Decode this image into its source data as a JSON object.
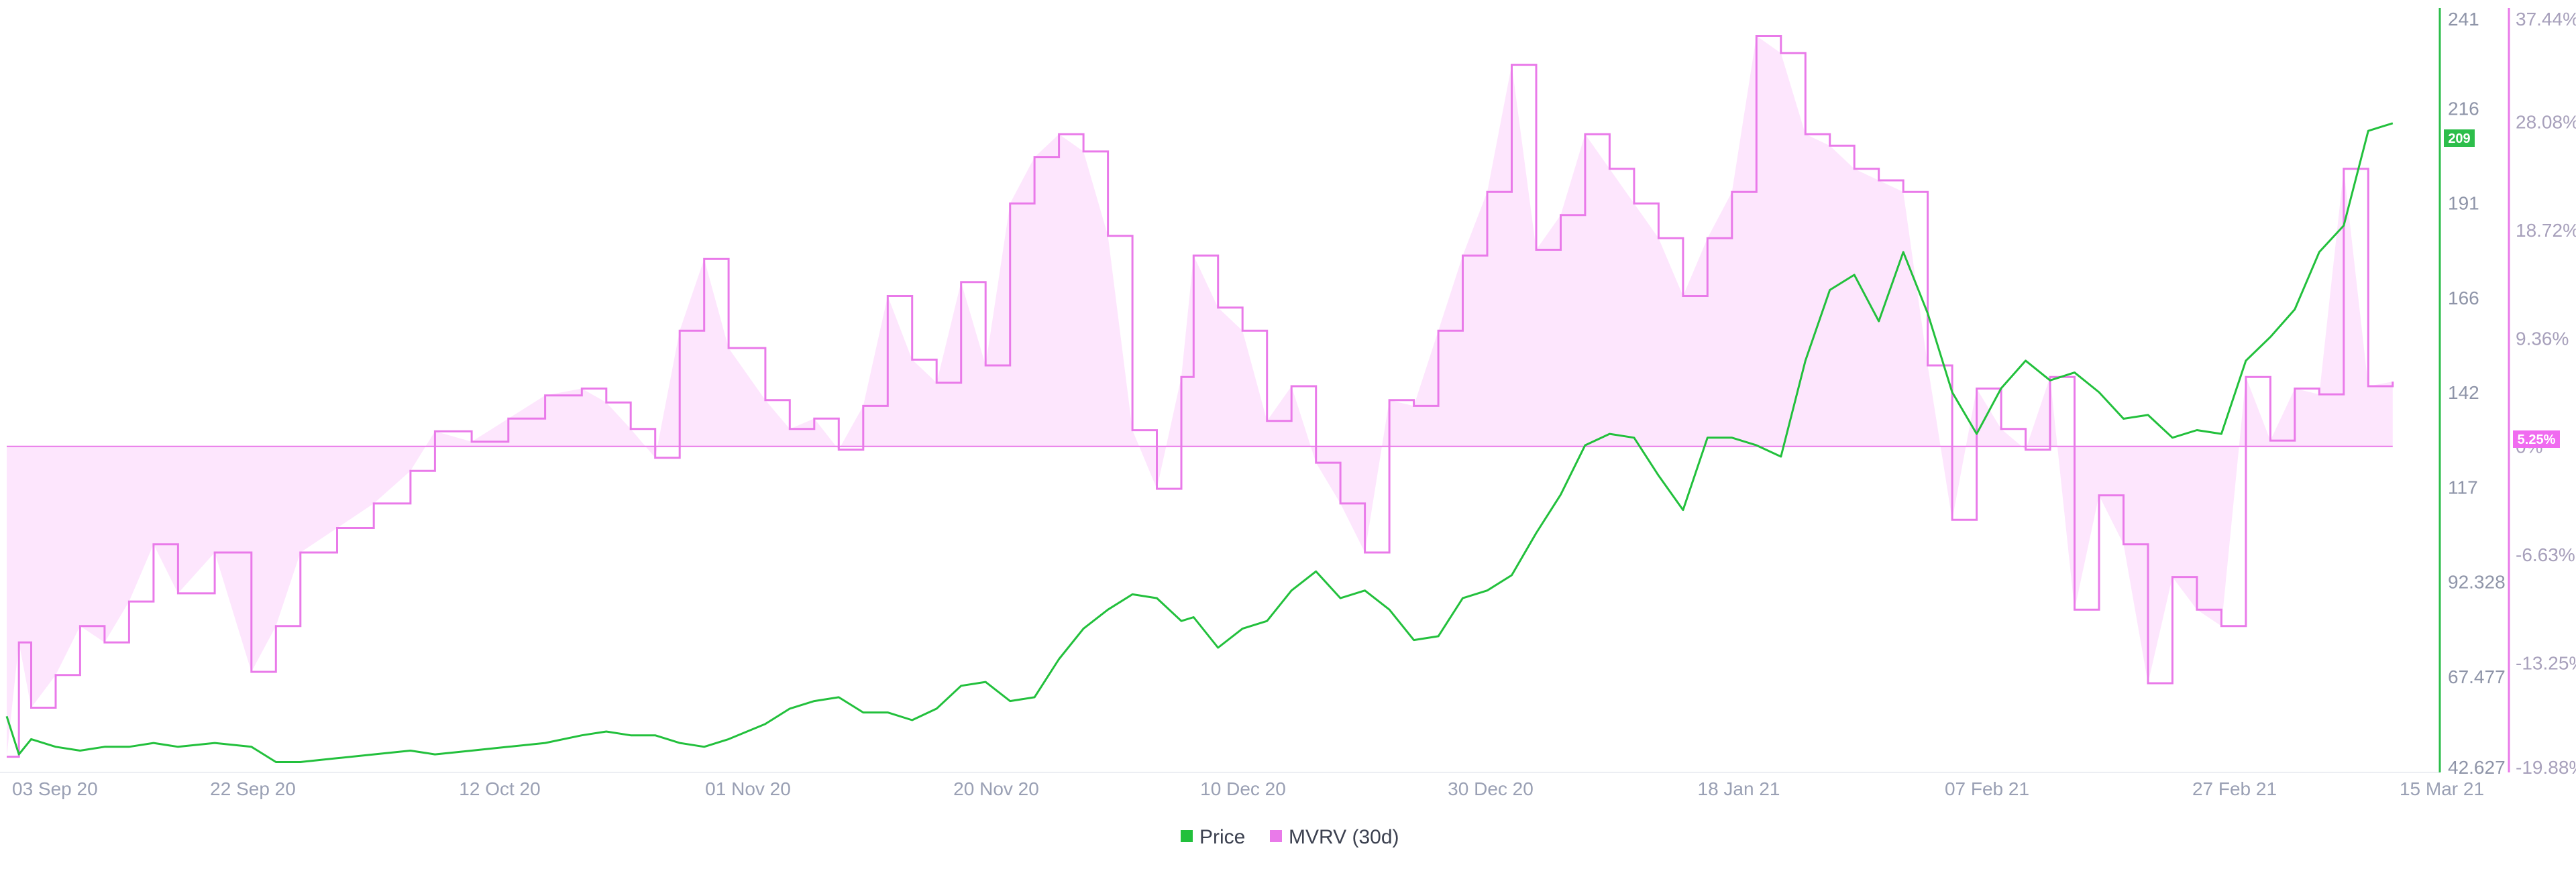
{
  "chart_data": {
    "type": "line",
    "title": "",
    "xlabel": "",
    "x_ticks": [
      "03 Sep 20",
      "22 Sep 20",
      "12 Oct 20",
      "01 Nov 20",
      "20 Nov 20",
      "10 Dec 20",
      "30 Dec 20",
      "18 Jan 21",
      "07 Feb 21",
      "27 Feb 21",
      "15 Mar 21"
    ],
    "x_range": [
      "2020-08-31",
      "2021-03-15"
    ],
    "y_axis_price": {
      "ticks": [
        "241",
        "216",
        "191",
        "166",
        "142",
        "117",
        "92.328",
        "67.477",
        "42.627"
      ],
      "range": [
        42.627,
        241
      ],
      "color": "#2dbe4b"
    },
    "y_axis_mvrv": {
      "ticks": [
        "37.44%",
        "28.08%",
        "18.72%",
        "9.36%",
        "0%",
        "-6.63%",
        "-13.25%",
        "-19.88%"
      ],
      "range": [
        -19.88,
        37.44
      ],
      "color": "#e97ae9"
    },
    "current_price_label": "209",
    "current_mvrv_label": "5.25%",
    "grid": false,
    "legend_position": "bottom-center",
    "series": [
      {
        "name": "Price",
        "axis": "price",
        "color": "#22c03c",
        "points": [
          [
            "2020-08-31",
            57
          ],
          [
            "2020-09-01",
            47
          ],
          [
            "2020-09-02",
            51
          ],
          [
            "2020-09-04",
            49
          ],
          [
            "2020-09-06",
            48
          ],
          [
            "2020-09-08",
            49
          ],
          [
            "2020-09-10",
            49
          ],
          [
            "2020-09-12",
            50
          ],
          [
            "2020-09-14",
            49
          ],
          [
            "2020-09-17",
            50
          ],
          [
            "2020-09-20",
            49
          ],
          [
            "2020-09-22",
            45
          ],
          [
            "2020-09-24",
            45
          ],
          [
            "2020-09-27",
            46
          ],
          [
            "2020-09-30",
            47
          ],
          [
            "2020-10-03",
            48
          ],
          [
            "2020-10-05",
            47
          ],
          [
            "2020-10-08",
            48
          ],
          [
            "2020-10-11",
            49
          ],
          [
            "2020-10-14",
            50
          ],
          [
            "2020-10-17",
            52
          ],
          [
            "2020-10-19",
            53
          ],
          [
            "2020-10-21",
            52
          ],
          [
            "2020-10-23",
            52
          ],
          [
            "2020-10-25",
            50
          ],
          [
            "2020-10-27",
            49
          ],
          [
            "2020-10-29",
            51
          ],
          [
            "2020-11-01",
            55
          ],
          [
            "2020-11-03",
            59
          ],
          [
            "2020-11-05",
            61
          ],
          [
            "2020-11-07",
            62
          ],
          [
            "2020-11-09",
            58
          ],
          [
            "2020-11-11",
            58
          ],
          [
            "2020-11-13",
            56
          ],
          [
            "2020-11-15",
            59
          ],
          [
            "2020-11-17",
            65
          ],
          [
            "2020-11-19",
            66
          ],
          [
            "2020-11-21",
            61
          ],
          [
            "2020-11-23",
            62
          ],
          [
            "2020-11-25",
            72
          ],
          [
            "2020-11-27",
            80
          ],
          [
            "2020-11-29",
            85
          ],
          [
            "2020-12-01",
            89
          ],
          [
            "2020-12-03",
            88
          ],
          [
            "2020-12-05",
            82
          ],
          [
            "2020-12-06",
            83
          ],
          [
            "2020-12-08",
            75
          ],
          [
            "2020-12-10",
            80
          ],
          [
            "2020-12-12",
            82
          ],
          [
            "2020-12-14",
            90
          ],
          [
            "2020-12-16",
            95
          ],
          [
            "2020-12-18",
            88
          ],
          [
            "2020-12-20",
            90
          ],
          [
            "2020-12-22",
            85
          ],
          [
            "2020-12-24",
            77
          ],
          [
            "2020-12-26",
            78
          ],
          [
            "2020-12-28",
            88
          ],
          [
            "2020-12-30",
            90
          ],
          [
            "2021-01-01",
            94
          ],
          [
            "2021-01-03",
            105
          ],
          [
            "2021-01-05",
            115
          ],
          [
            "2021-01-07",
            128
          ],
          [
            "2021-01-09",
            131
          ],
          [
            "2021-01-11",
            130
          ],
          [
            "2021-01-13",
            120
          ],
          [
            "2021-01-15",
            111
          ],
          [
            "2021-01-17",
            130
          ],
          [
            "2021-01-19",
            130
          ],
          [
            "2021-01-21",
            128
          ],
          [
            "2021-01-23",
            125
          ],
          [
            "2021-01-25",
            150
          ],
          [
            "2021-01-27",
            168
          ],
          [
            "2021-01-29",
            172
          ],
          [
            "2021-01-31",
            160
          ],
          [
            "2021-02-02",
            178
          ],
          [
            "2021-02-04",
            162
          ],
          [
            "2021-02-06",
            142
          ],
          [
            "2021-02-08",
            131
          ],
          [
            "2021-02-10",
            143
          ],
          [
            "2021-02-12",
            150
          ],
          [
            "2021-02-14",
            145
          ],
          [
            "2021-02-16",
            147
          ],
          [
            "2021-02-18",
            142
          ],
          [
            "2021-02-20",
            135
          ],
          [
            "2021-02-22",
            136
          ],
          [
            "2021-02-24",
            130
          ],
          [
            "2021-02-26",
            132
          ],
          [
            "2021-02-28",
            131
          ],
          [
            "2021-03-02",
            150
          ],
          [
            "2021-03-04",
            156
          ],
          [
            "2021-03-06",
            163
          ],
          [
            "2021-03-08",
            178
          ],
          [
            "2021-03-10",
            185
          ],
          [
            "2021-03-12",
            210
          ],
          [
            "2021-03-14",
            212
          ]
        ]
      },
      {
        "name": "MVRV (30d)",
        "axis": "mvrv",
        "color": "#e97ae9",
        "fill": "#fde6fd",
        "points": [
          [
            "2020-08-31",
            -19.0
          ],
          [
            "2020-09-01",
            -12.0
          ],
          [
            "2020-09-02",
            -16.0
          ],
          [
            "2020-09-04",
            -14.0
          ],
          [
            "2020-09-06",
            -11.0
          ],
          [
            "2020-09-08",
            -12.0
          ],
          [
            "2020-09-10",
            -9.5
          ],
          [
            "2020-09-12",
            -6.0
          ],
          [
            "2020-09-14",
            -9.0
          ],
          [
            "2020-09-17",
            -6.5
          ],
          [
            "2020-09-20",
            -13.8
          ],
          [
            "2020-09-22",
            -11.0
          ],
          [
            "2020-09-24",
            -6.5
          ],
          [
            "2020-09-27",
            -5.0
          ],
          [
            "2020-09-30",
            -3.5
          ],
          [
            "2020-10-03",
            -1.5
          ],
          [
            "2020-10-05",
            1.3
          ],
          [
            "2020-10-08",
            0.4
          ],
          [
            "2020-10-11",
            2.4
          ],
          [
            "2020-10-14",
            4.4
          ],
          [
            "2020-10-17",
            5.0
          ],
          [
            "2020-10-19",
            3.8
          ],
          [
            "2020-10-21",
            1.5
          ],
          [
            "2020-10-23",
            -0.7
          ],
          [
            "2020-10-25",
            10.0
          ],
          [
            "2020-10-27",
            16.2
          ],
          [
            "2020-10-29",
            8.5
          ],
          [
            "2020-11-01",
            4.0
          ],
          [
            "2020-11-03",
            1.5
          ],
          [
            "2020-11-05",
            2.4
          ],
          [
            "2020-11-07",
            -0.2
          ],
          [
            "2020-11-09",
            3.5
          ],
          [
            "2020-11-11",
            13.0
          ],
          [
            "2020-11-13",
            7.5
          ],
          [
            "2020-11-15",
            5.5
          ],
          [
            "2020-11-17",
            14.2
          ],
          [
            "2020-11-19",
            7.0
          ],
          [
            "2020-11-21",
            21.0
          ],
          [
            "2020-11-23",
            25.0
          ],
          [
            "2020-11-25",
            27.0
          ],
          [
            "2020-11-27",
            25.5
          ],
          [
            "2020-11-29",
            18.2
          ],
          [
            "2020-12-01",
            1.4
          ],
          [
            "2020-12-03",
            -2.6
          ],
          [
            "2020-12-05",
            6.0
          ],
          [
            "2020-12-06",
            16.5
          ],
          [
            "2020-12-08",
            12.0
          ],
          [
            "2020-12-10",
            10.0
          ],
          [
            "2020-12-12",
            2.2
          ],
          [
            "2020-12-14",
            5.2
          ],
          [
            "2020-12-16",
            -1.0
          ],
          [
            "2020-12-18",
            -3.5
          ],
          [
            "2020-12-20",
            -6.5
          ],
          [
            "2020-12-22",
            4.0
          ],
          [
            "2020-12-24",
            3.5
          ],
          [
            "2020-12-26",
            10.0
          ],
          [
            "2020-12-28",
            16.5
          ],
          [
            "2020-12-30",
            22.0
          ],
          [
            "2021-01-01",
            33.0
          ],
          [
            "2021-01-03",
            17.0
          ],
          [
            "2021-01-05",
            20.0
          ],
          [
            "2021-01-07",
            27.0
          ],
          [
            "2021-01-09",
            24.0
          ],
          [
            "2021-01-11",
            21.0
          ],
          [
            "2021-01-13",
            18.0
          ],
          [
            "2021-01-15",
            13.0
          ],
          [
            "2021-01-17",
            18.0
          ],
          [
            "2021-01-19",
            22.0
          ],
          [
            "2021-01-21",
            35.5
          ],
          [
            "2021-01-23",
            34.0
          ],
          [
            "2021-01-25",
            27.0
          ],
          [
            "2021-01-27",
            26.0
          ],
          [
            "2021-01-29",
            24.0
          ],
          [
            "2021-01-31",
            23.0
          ],
          [
            "2021-02-02",
            22.0
          ],
          [
            "2021-02-04",
            7.0
          ],
          [
            "2021-02-06",
            -4.5
          ],
          [
            "2021-02-08",
            5.0
          ],
          [
            "2021-02-10",
            1.5
          ],
          [
            "2021-02-12",
            -0.2
          ],
          [
            "2021-02-14",
            6.0
          ],
          [
            "2021-02-16",
            -10.0
          ],
          [
            "2021-02-18",
            -3.0
          ],
          [
            "2021-02-20",
            -6.0
          ],
          [
            "2021-02-22",
            -14.5
          ],
          [
            "2021-02-24",
            -8.0
          ],
          [
            "2021-02-26",
            -10.0
          ],
          [
            "2021-02-28",
            -11.0
          ],
          [
            "2021-03-02",
            6.0
          ],
          [
            "2021-03-04",
            0.5
          ],
          [
            "2021-03-06",
            5.0
          ],
          [
            "2021-03-08",
            4.5
          ],
          [
            "2021-03-10",
            24.0
          ],
          [
            "2021-03-12",
            5.2
          ],
          [
            "2021-03-14",
            5.6
          ]
        ]
      }
    ]
  }
}
